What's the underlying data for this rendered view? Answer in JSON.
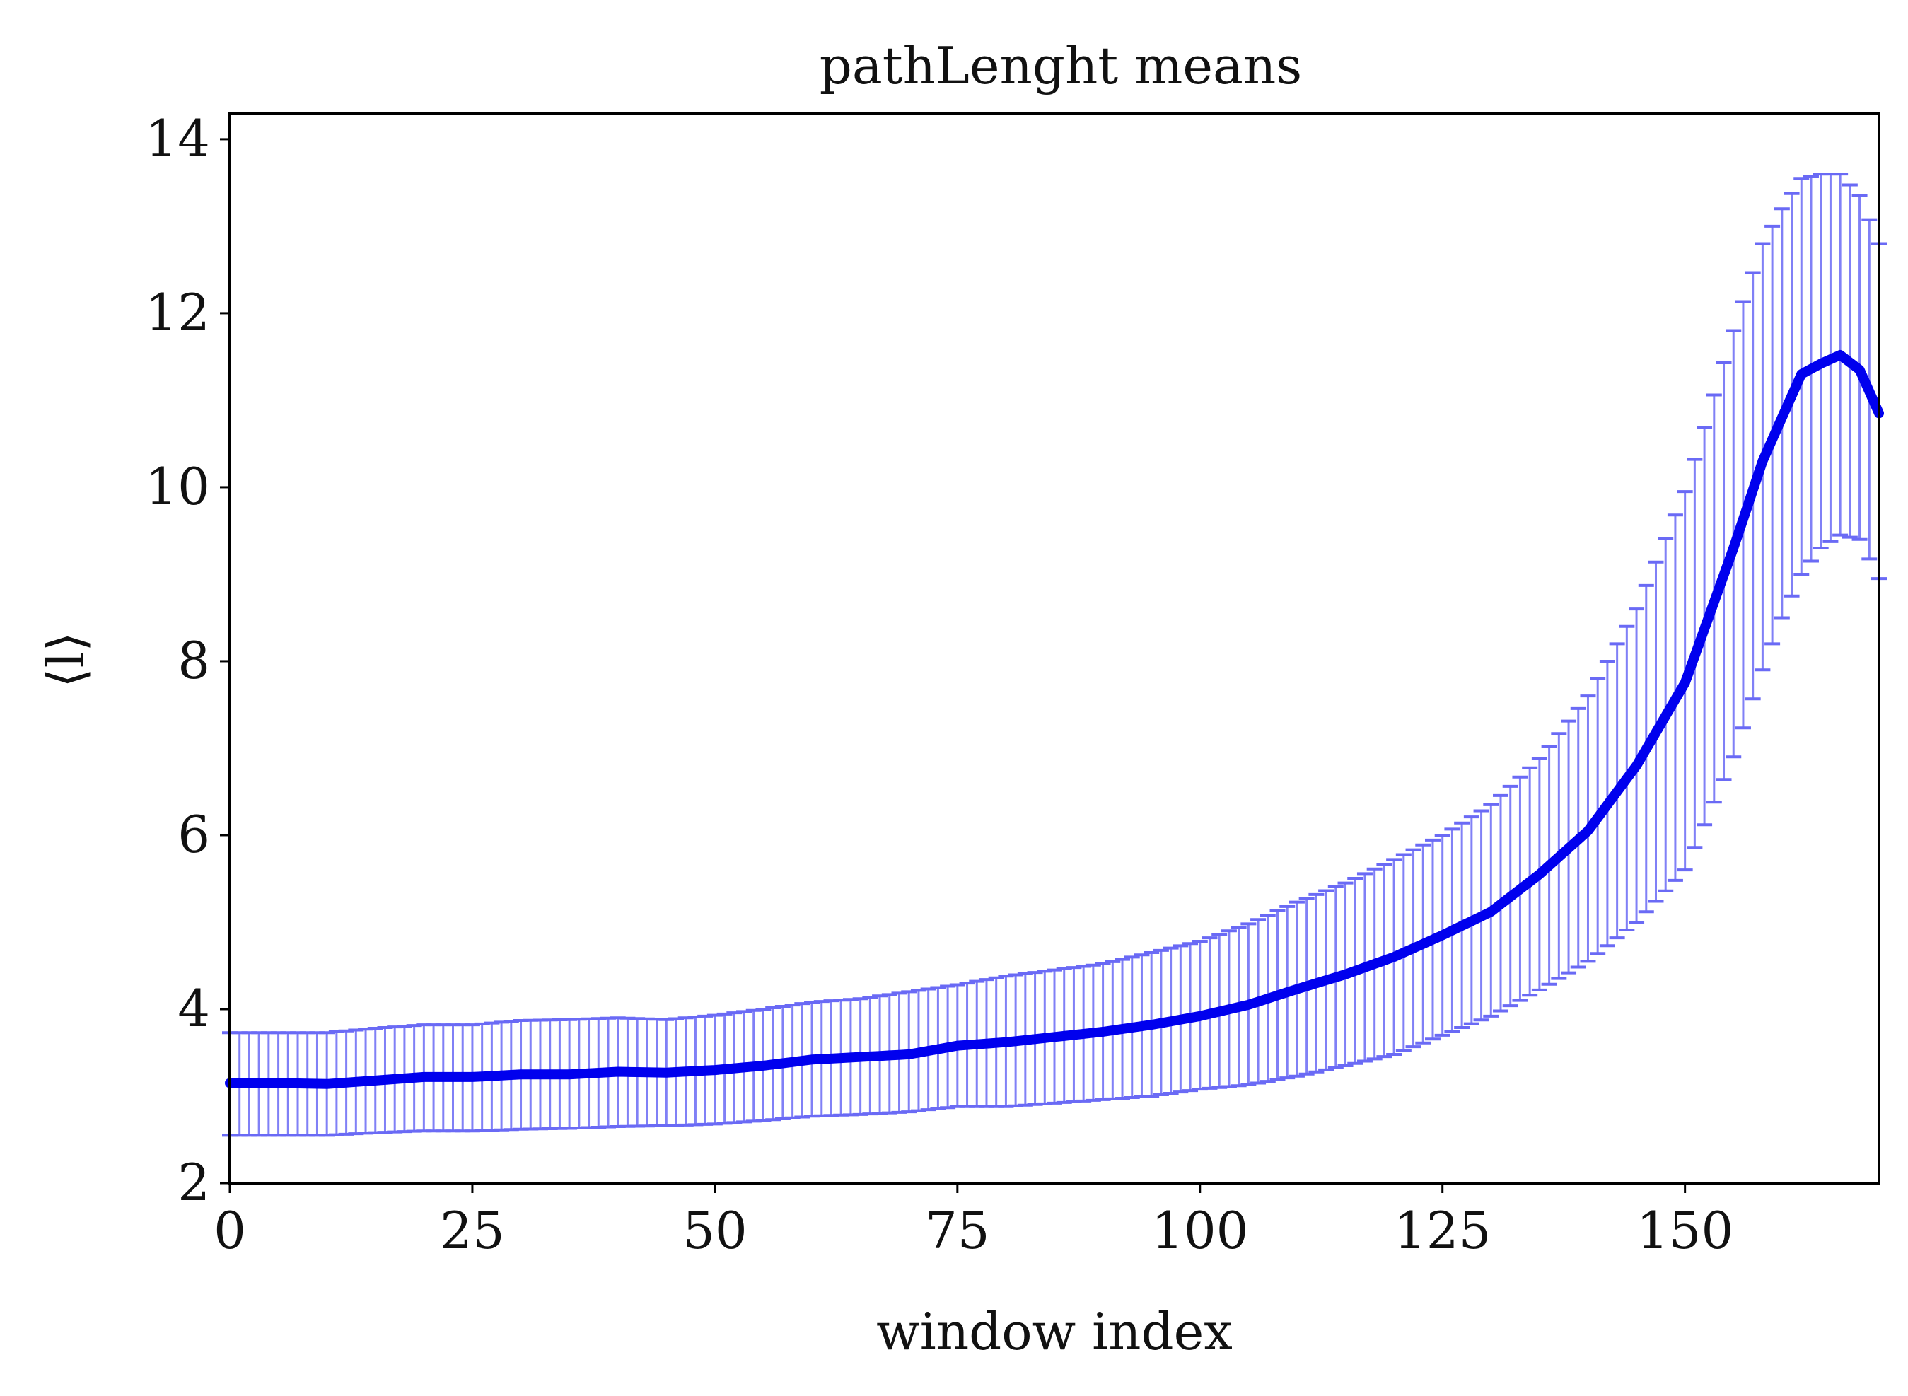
{
  "chart_data": {
    "type": "line",
    "title": "pathLenght means",
    "xlabel": "window index",
    "ylabel": "⟨l⟩",
    "xlim": [
      0,
      170
    ],
    "ylim": [
      2,
      14.3
    ],
    "xticks": [
      0,
      25,
      50,
      75,
      100,
      125,
      150
    ],
    "yticks": [
      2,
      4,
      6,
      8,
      10,
      12,
      14
    ],
    "grid": false,
    "legend": "none",
    "line_color": "#0000ee",
    "errorbar_color": "#6a6af5",
    "series": [
      {
        "errorbars": true,
        "x": [
          0,
          5,
          10,
          15,
          20,
          25,
          30,
          35,
          40,
          45,
          50,
          55,
          60,
          65,
          70,
          75,
          80,
          85,
          90,
          95,
          100,
          105,
          110,
          115,
          120,
          125,
          130,
          135,
          140,
          145,
          150,
          155,
          158,
          160,
          162,
          164,
          166,
          168,
          170
        ],
        "mean": [
          3.15,
          3.15,
          3.14,
          3.18,
          3.22,
          3.22,
          3.25,
          3.25,
          3.28,
          3.27,
          3.3,
          3.35,
          3.42,
          3.45,
          3.48,
          3.58,
          3.62,
          3.68,
          3.74,
          3.82,
          3.92,
          4.05,
          4.23,
          4.4,
          4.6,
          4.85,
          5.12,
          5.55,
          6.05,
          6.8,
          7.75,
          9.3,
          10.3,
          10.8,
          11.3,
          11.42,
          11.52,
          11.35,
          10.85
        ],
        "upper": [
          3.73,
          3.73,
          3.73,
          3.78,
          3.82,
          3.82,
          3.87,
          3.88,
          3.9,
          3.88,
          3.93,
          4.0,
          4.08,
          4.12,
          4.2,
          4.28,
          4.38,
          4.45,
          4.52,
          4.65,
          4.78,
          4.98,
          5.23,
          5.45,
          5.72,
          6.0,
          6.35,
          6.88,
          7.6,
          8.6,
          9.95,
          11.8,
          12.8,
          13.2,
          13.55,
          13.6,
          13.6,
          13.35,
          12.8
        ],
        "lower": [
          2.55,
          2.55,
          2.55,
          2.58,
          2.6,
          2.6,
          2.62,
          2.63,
          2.65,
          2.66,
          2.68,
          2.72,
          2.77,
          2.79,
          2.82,
          2.88,
          2.88,
          2.92,
          2.96,
          3.0,
          3.08,
          3.13,
          3.23,
          3.35,
          3.48,
          3.7,
          3.92,
          4.22,
          4.55,
          5.0,
          5.6,
          6.9,
          7.9,
          8.5,
          9.0,
          9.3,
          9.45,
          9.4,
          8.95
        ]
      }
    ]
  }
}
